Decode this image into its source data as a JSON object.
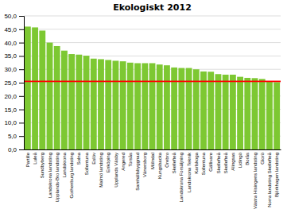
{
  "chart_data": {
    "type": "bar",
    "title": "Ekologiskt 2012",
    "categories": [
      "Partille",
      "Luleå",
      "Sundbyberg",
      "Landskrona landsting",
      "Upplands-Bro landsting",
      "Landskrona",
      "Gothenburg landsting",
      "Solna",
      "Sollentuna",
      "Eslöv",
      "Malmö landsting",
      "Enköping",
      "Upplands Väsby",
      "Angered",
      "Torsås",
      "Samhällsbyggnad",
      "Vänersborg",
      "Mölndal",
      "Kungsbacka",
      "Örebro",
      "Skellefteå",
      "Landskrona Forsäljning",
      "Landskrona Teknik",
      "Karlskoga",
      "Sollentuna",
      "Gällivare",
      "Skellefteå",
      "Skellefteå",
      "Alingsas",
      "Lidingö",
      "Borås",
      "Västra Hisingens landsting",
      "Glorö",
      "Norra landsting Skellefteå",
      "Björkhagen landsting"
    ],
    "values": [
      46.0,
      45.7,
      44.5,
      40.0,
      38.7,
      37.0,
      35.7,
      35.5,
      35.1,
      34.0,
      33.8,
      33.5,
      33.2,
      33.0,
      32.5,
      32.3,
      32.3,
      32.3,
      31.8,
      31.5,
      30.7,
      30.5,
      30.5,
      30.0,
      29.2,
      29.1,
      28.2,
      28.0,
      28.0,
      27.2,
      26.8,
      26.7,
      26.4,
      25.5,
      25.2
    ],
    "color": "#7DC832",
    "reference_line": {
      "value": 25.5,
      "color": "red"
    },
    "ylim": [
      0,
      50
    ],
    "yticks": [
      {
        "value": 0,
        "label": "0,0"
      },
      {
        "value": 5,
        "label": "5,0"
      },
      {
        "value": 10,
        "label": "10,0"
      },
      {
        "value": 15,
        "label": "15,0"
      },
      {
        "value": 20,
        "label": "20,0"
      },
      {
        "value": 25,
        "label": "25,0"
      },
      {
        "value": 30,
        "label": "30,0"
      },
      {
        "value": 35,
        "label": "35,0"
      },
      {
        "value": 40,
        "label": "40,0"
      },
      {
        "value": 45,
        "label": "45,0"
      },
      {
        "value": 50,
        "label": "50,0"
      }
    ],
    "grid": true
  }
}
